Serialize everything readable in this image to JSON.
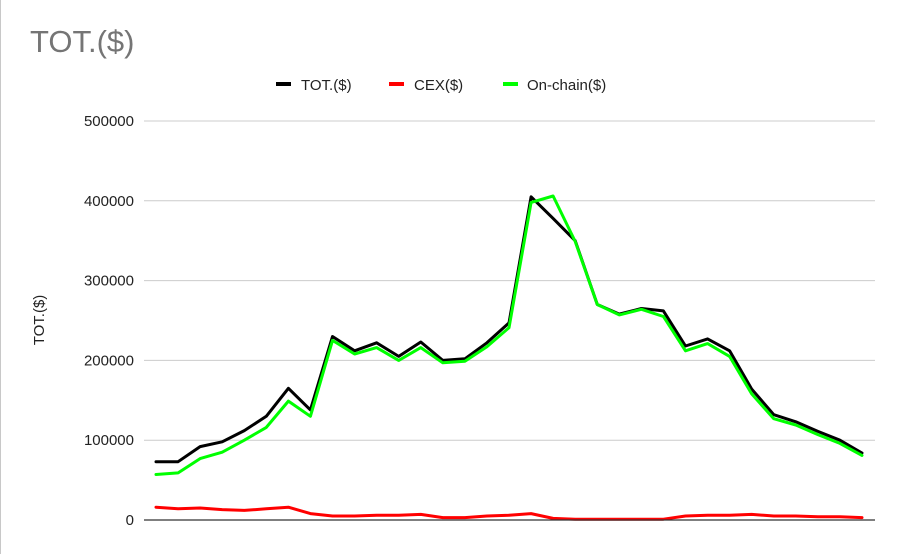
{
  "chart_data": {
    "type": "line",
    "title": "TOT.($)",
    "ylabel": "TOT.($)",
    "xlabel": "",
    "ylim": [
      0,
      500000
    ],
    "yticks": [
      "0",
      "100000",
      "200000",
      "300000",
      "400000",
      "500000"
    ],
    "ytick_values": [
      0,
      100000,
      200000,
      300000,
      400000,
      500000
    ],
    "grid": true,
    "legend_position": "top",
    "series": [
      {
        "name": "TOT.($)",
        "color": "#000000",
        "values": [
          73000,
          73000,
          92000,
          98000,
          112000,
          130000,
          165000,
          138000,
          230000,
          212000,
          222000,
          205000,
          223000,
          200000,
          202000,
          222000,
          247000,
          405000,
          378000,
          350000,
          270000,
          258000,
          265000,
          262000,
          218000,
          227000,
          212000,
          164000,
          132000,
          123000,
          111000,
          100000,
          84000
        ]
      },
      {
        "name": "CEX($)",
        "color": "#ff0000",
        "values": [
          16000,
          14000,
          15000,
          13000,
          12000,
          14000,
          16000,
          8000,
          5000,
          5000,
          6000,
          6000,
          7000,
          3000,
          3000,
          5000,
          6000,
          8000,
          2000,
          1000,
          1000,
          1000,
          1000,
          1000,
          5000,
          6000,
          6000,
          7000,
          5000,
          5000,
          4000,
          4000,
          3000
        ]
      },
      {
        "name": "On-chain($)",
        "color": "#00ff00",
        "values": [
          57000,
          59000,
          77000,
          85000,
          100000,
          116000,
          149000,
          130000,
          225000,
          208000,
          216000,
          200000,
          216000,
          197000,
          199000,
          217000,
          241000,
          398000,
          406000,
          349000,
          270000,
          257000,
          264000,
          255000,
          212000,
          221000,
          205000,
          158000,
          127000,
          119000,
          107000,
          96000,
          81000
        ]
      }
    ]
  }
}
